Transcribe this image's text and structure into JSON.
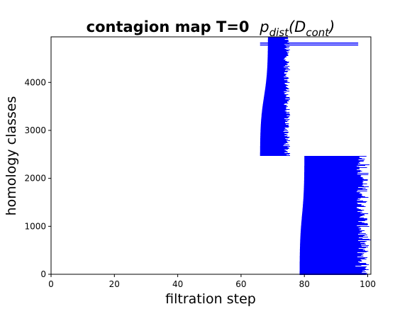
{
  "chart_data": {
    "type": "barcode",
    "title": {
      "main": "contagion map T=0",
      "math_symbol": "p",
      "math_subscript": "dist",
      "math_open": "(D",
      "math_subscript2": "cont",
      "math_close": ")"
    },
    "xlabel": "filtration step",
    "ylabel": "homology classes",
    "xlim": [
      0,
      101
    ],
    "ylim": [
      0,
      4950
    ],
    "xticks": [
      0,
      20,
      40,
      60,
      80,
      100
    ],
    "yticks": [
      0,
      1000,
      2000,
      3000,
      4000
    ],
    "bar_color": "#0000ff",
    "grid": false,
    "bar_groups": [
      {
        "name": "upper",
        "index_range": [
          2470,
          4950
        ],
        "birth_start": 66,
        "birth_end": 68.5,
        "birth_plateau_index": 4900,
        "death_range": [
          73.5,
          75.5
        ]
      },
      {
        "name": "lower",
        "index_range": [
          0,
          2470
        ],
        "birth_start": 78.5,
        "birth_end": 80,
        "birth_plateau_index": 30,
        "death_range": [
          96.5,
          100.5
        ]
      }
    ],
    "long_bars": [
      {
        "y": 4780,
        "birth": 66,
        "death": 97
      },
      {
        "y": 4820,
        "birth": 66,
        "death": 97
      }
    ]
  }
}
